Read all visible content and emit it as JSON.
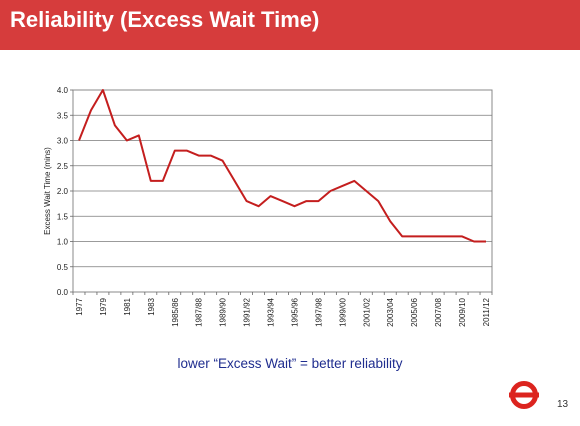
{
  "slide": {
    "title": "Reliability (Excess Wait Time)",
    "caption": "lower “Excess Wait”  =  better reliability",
    "page_number": "13",
    "header_color": "#d63c3c",
    "caption_color": "#1f2d8f",
    "logo": "roundel-icon"
  },
  "chart_data": {
    "type": "line",
    "title": "",
    "xlabel": "",
    "ylabel": "Excess Wait Time (mins)",
    "ylim": [
      0,
      4
    ],
    "yticks": [
      0.0,
      0.5,
      1.0,
      1.5,
      2.0,
      2.5,
      3.0,
      3.5,
      4.0
    ],
    "ytick_labels": [
      "0.0",
      "0.5",
      "1.0",
      "1.5",
      "2.0",
      "2.5",
      "3.0",
      "3.5",
      "4.0"
    ],
    "x": [
      "1977",
      "1978",
      "1979",
      "1980",
      "1981",
      "1982",
      "1983",
      "1984",
      "1985/86",
      "1986/87",
      "1987/88",
      "1988/89",
      "1989/90",
      "1990/91",
      "1991/92",
      "1992/93",
      "1993/94",
      "1994/95",
      "1995/96",
      "1996/97",
      "1997/98",
      "1998/99",
      "1999/00",
      "2000/01",
      "2001/02",
      "2002/03",
      "2003/04",
      "2004/05",
      "2005/06",
      "2006/07",
      "2007/08",
      "2008/09",
      "2009/10",
      "2010/11",
      "2011/12"
    ],
    "tick_labels": [
      "1977",
      "1979",
      "1981",
      "1983",
      "1985/86",
      "1987/88",
      "1989/90",
      "1991/92",
      "1993/94",
      "1995/96",
      "1997/98",
      "1999/00",
      "2001/02",
      "2003/04",
      "2005/06",
      "2007/08",
      "2009/10",
      "2011/12"
    ],
    "series": [
      {
        "color": "#c41e1e",
        "values": [
          3.0,
          3.6,
          4.0,
          3.3,
          3.0,
          3.1,
          2.2,
          2.2,
          2.8,
          2.8,
          2.7,
          2.7,
          2.6,
          2.2,
          1.8,
          1.7,
          1.9,
          1.8,
          1.7,
          1.8,
          1.8,
          2.0,
          2.1,
          2.2,
          2.0,
          1.8,
          1.4,
          1.1,
          1.1,
          1.1,
          1.1,
          1.1,
          1.1,
          1.0,
          1.0
        ]
      }
    ],
    "grid": true,
    "grid_axis": "y",
    "legend": "none"
  }
}
